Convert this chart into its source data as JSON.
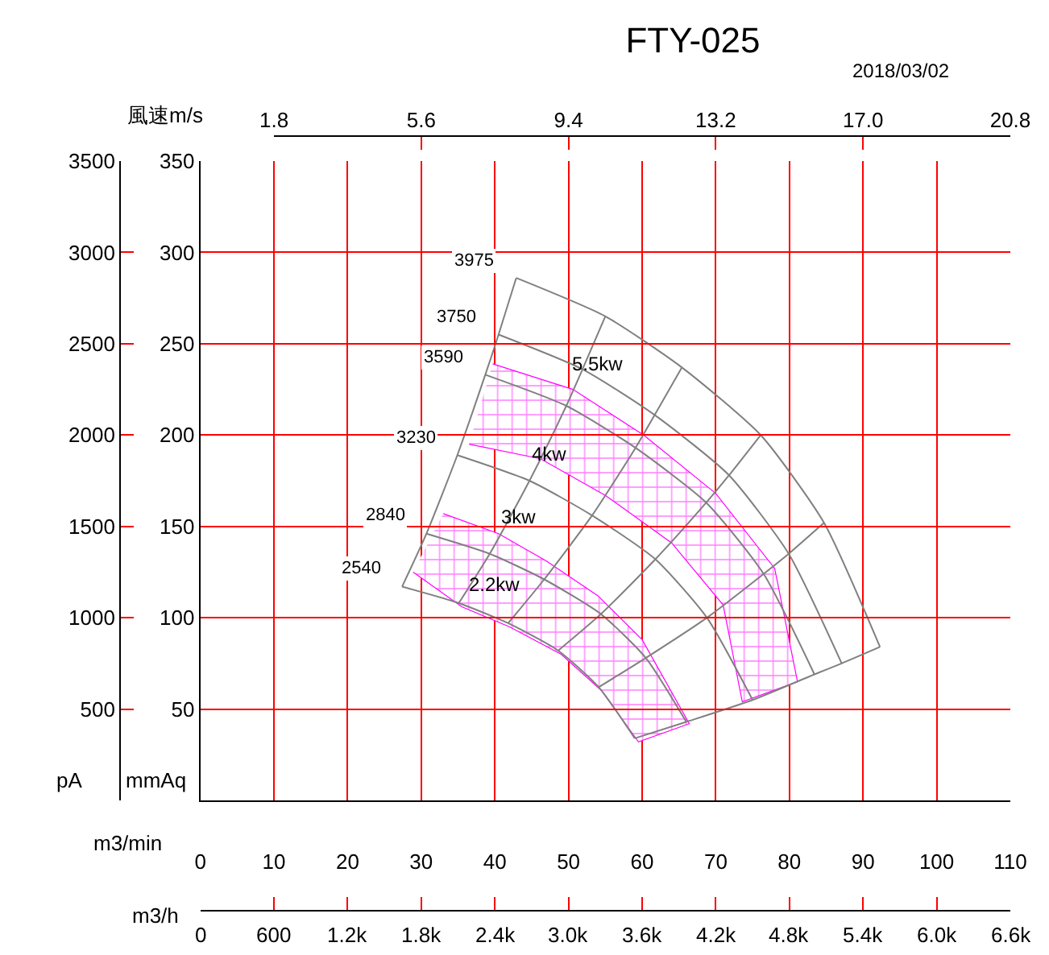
{
  "chart_data": {
    "type": "line",
    "title": "FTY-025",
    "subtitle": "2018/03/02",
    "xlabel": "m3/min",
    "x2label": "風速m/s",
    "ylabel": "mmAq",
    "y2label": "pA",
    "xlim": [
      0,
      110
    ],
    "xticks": [
      0,
      10,
      20,
      30,
      40,
      50,
      60,
      70,
      80,
      90,
      100,
      110
    ],
    "x2lim": [
      1.8,
      20.8
    ],
    "x2ticks": [
      1.8,
      5.6,
      9.4,
      13.2,
      {
        "value": 17.0,
        "label": "17.0"
      },
      20.8
    ],
    "ylim": [
      0,
      350
    ],
    "yticks": [
      50,
      100,
      150,
      200,
      250,
      300,
      350
    ],
    "y2lim": [
      0,
      3500
    ],
    "y2ticks": [
      500,
      1000,
      1500,
      2000,
      2500,
      3000,
      3500
    ],
    "grid": true,
    "marker": "none",
    "line_style": "solid",
    "series": [
      {
        "type": "area",
        "color": "#ff00ff",
        "x": [
          33,
          40.5,
          47,
          54,
          60,
          66.4,
          59.5,
          54.5,
          49,
          42,
          35.5,
          28.9
        ],
        "values": [
          157,
          146,
          131,
          112,
          88,
          42,
          32,
          60,
          80,
          95,
          106,
          125
        ]
      },
      {
        "type": "area",
        "color": "#ff00ff",
        "x": [
          39.7,
          50.6,
          60.2,
          70,
          78,
          81.1,
          73.6,
          71,
          64,
          55,
          46.2,
          36.5
        ],
        "values": [
          239,
          225,
          200,
          168,
          127,
          65,
          54,
          107,
          141,
          167,
          187,
          195
        ]
      },
      {
        "name": "3975",
        "color": "#808080",
        "x": [
          42.9,
          55.0,
          65.4,
          76.1,
          84.7,
          92.3
        ],
        "values": [
          286,
          265,
          237,
          200,
          152,
          84
        ]
      },
      {
        "name": "3750",
        "color": "#808080",
        "x": [
          40.5,
          51.9,
          61.7,
          71.8,
          79.9,
          87.1
        ],
        "values": [
          255,
          236,
          211,
          178,
          135,
          75
        ]
      },
      {
        "name": "3590",
        "color": "#808080",
        "x": [
          38.7,
          49.7,
          59.1,
          68.7,
          76.5,
          83.4
        ],
        "values": [
          233,
          216,
          193,
          163,
          124,
          69
        ]
      },
      {
        "name": "3230",
        "color": "#808080",
        "x": [
          34.9,
          44.7,
          53.2,
          61.8,
          68.8,
          75.0
        ],
        "values": [
          189,
          175,
          156,
          132,
          100,
          55
        ]
      },
      {
        "name": "2840",
        "color": "#808080",
        "x": [
          30.7,
          39.3,
          46.7,
          54.4,
          60.5,
          66.0
        ],
        "values": [
          146,
          135,
          121,
          102,
          78,
          43
        ]
      },
      {
        "name": "2540",
        "color": "#808080",
        "x": [
          27.4,
          35.1,
          41.8,
          48.6,
          54.1,
          59.0
        ],
        "values": [
          117,
          108,
          97,
          82,
          62,
          34
        ]
      },
      {
        "color": "#808080",
        "x": [
          27.4,
          30.7,
          34.9,
          38.7,
          40.5,
          42.9
        ],
        "values": [
          117,
          146,
          189,
          233,
          255,
          286
        ]
      },
      {
        "color": "#808080",
        "x": [
          35.1,
          39.3,
          44.7,
          49.7,
          51.9,
          55.0
        ],
        "values": [
          108,
          135,
          175,
          216,
          236,
          265
        ]
      },
      {
        "color": "#808080",
        "x": [
          41.8,
          46.7,
          53.2,
          59.1,
          61.7,
          65.4
        ],
        "values": [
          97,
          121,
          156,
          193,
          211,
          237
        ]
      },
      {
        "color": "#808080",
        "x": [
          48.6,
          54.4,
          61.8,
          68.7,
          71.8,
          76.1
        ],
        "values": [
          82,
          102,
          132,
          163,
          178,
          200
        ]
      },
      {
        "color": "#808080",
        "x": [
          54.1,
          60.5,
          68.8,
          76.5,
          79.9,
          84.7
        ],
        "values": [
          62,
          78,
          100,
          124,
          135,
          152
        ]
      },
      {
        "color": "#808080",
        "x": [
          59.0,
          66.0,
          75.0,
          83.4,
          87.1,
          92.3
        ],
        "values": [
          34,
          43,
          55,
          69,
          75,
          84
        ]
      }
    ],
    "annotations": [
      "5.5kw",
      "4kw",
      "3kw",
      "2.2kw",
      "m3/h",
      "0",
      "600",
      "1.2k",
      "1.8k",
      "2.4k",
      "3.0k",
      "3.6k",
      "4.2k",
      "4.8k",
      "5.4k",
      "6.0k",
      "6.6k"
    ]
  }
}
